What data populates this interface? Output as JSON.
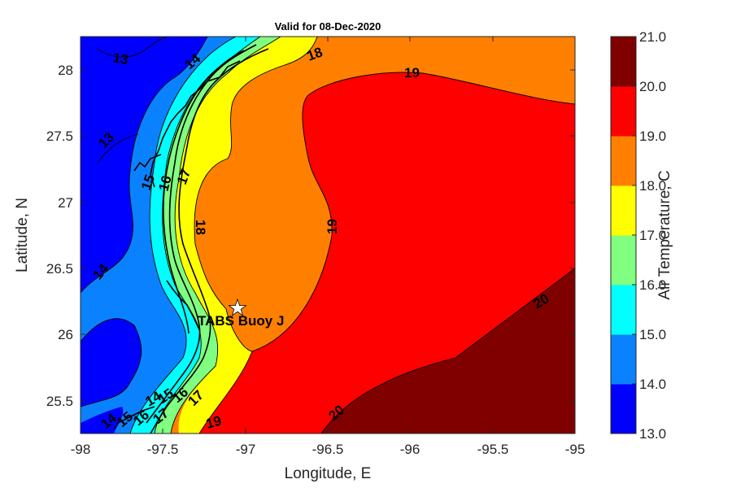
{
  "title": "Valid for 08-Dec-2020",
  "xlabel": "Longitude, E",
  "ylabel": "Latitude, N",
  "colorbar_label": "Air Temperature, C",
  "x_ticks": [
    "-98",
    "-97.5",
    "-97",
    "-96.5",
    "-96",
    "-95.5",
    "-95"
  ],
  "y_ticks": [
    "25.5",
    "26",
    "26.5",
    "27",
    "27.5",
    "28"
  ],
  "colorbar_ticks": [
    "13.0",
    "14.0",
    "15.0",
    "16.0",
    "17.0",
    "18.0",
    "19.0",
    "20.0",
    "21.0"
  ],
  "colorbar_colors": [
    "#0000ff",
    "#0a82ff",
    "#00ffff",
    "#80ff80",
    "#ffff00",
    "#ff8000",
    "#ff0000",
    "#800000"
  ],
  "station": {
    "label": "TABS Buoy J",
    "lon": -97.05,
    "lat": 26.19
  },
  "contour_labels": [
    "13",
    "13",
    "14",
    "14",
    "14",
    "15",
    "16",
    "17",
    "15",
    "16",
    "17",
    "18",
    "18",
    "19",
    "19",
    "19",
    "20",
    "20",
    "14",
    "15",
    "16",
    "17"
  ],
  "chart_data": {
    "type": "contour",
    "title": "Valid for 08-Dec-2020",
    "xlabel": "Longitude, E",
    "ylabel": "Latitude, N",
    "xlim": [
      -98,
      -95
    ],
    "ylim": [
      25.25,
      28.25
    ],
    "levels": [
      13,
      14,
      15,
      16,
      17,
      18,
      19,
      20,
      21
    ],
    "colorbar_label": "Air Temperature, C"
  }
}
